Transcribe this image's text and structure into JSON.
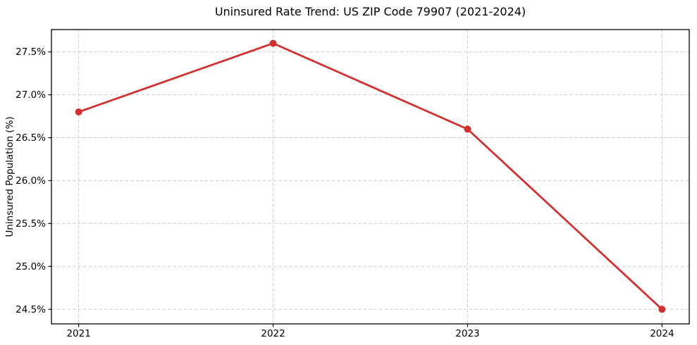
{
  "chart_data": {
    "type": "line",
    "title": "Uninsured Rate Trend: US ZIP Code 79907 (2021-2024)",
    "xlabel": "",
    "ylabel": "Uninsured Population (%)",
    "x": [
      2021,
      2022,
      2023,
      2024
    ],
    "x_tick_labels": [
      "2021",
      "2022",
      "2023",
      "2024"
    ],
    "y_ticks": [
      24.5,
      25.0,
      25.5,
      26.0,
      26.5,
      27.0,
      27.5
    ],
    "y_tick_labels": [
      "24.5%",
      "25.0%",
      "25.5%",
      "26.0%",
      "26.5%",
      "27.0%",
      "27.5%"
    ],
    "series": [
      {
        "name": "Uninsured Population (%)",
        "values": [
          26.8,
          27.6,
          26.6,
          24.5
        ]
      }
    ],
    "xlim": [
      2020.86,
      2024.14
    ],
    "ylim": [
      24.33,
      27.76
    ],
    "grid": true,
    "legend": "none",
    "colors": {
      "line": "#d32f2f",
      "marker": "#d32f2f",
      "grid": "#cdcdcd",
      "spine": "#000000",
      "background": "#ffffff",
      "text": "#000000"
    }
  }
}
